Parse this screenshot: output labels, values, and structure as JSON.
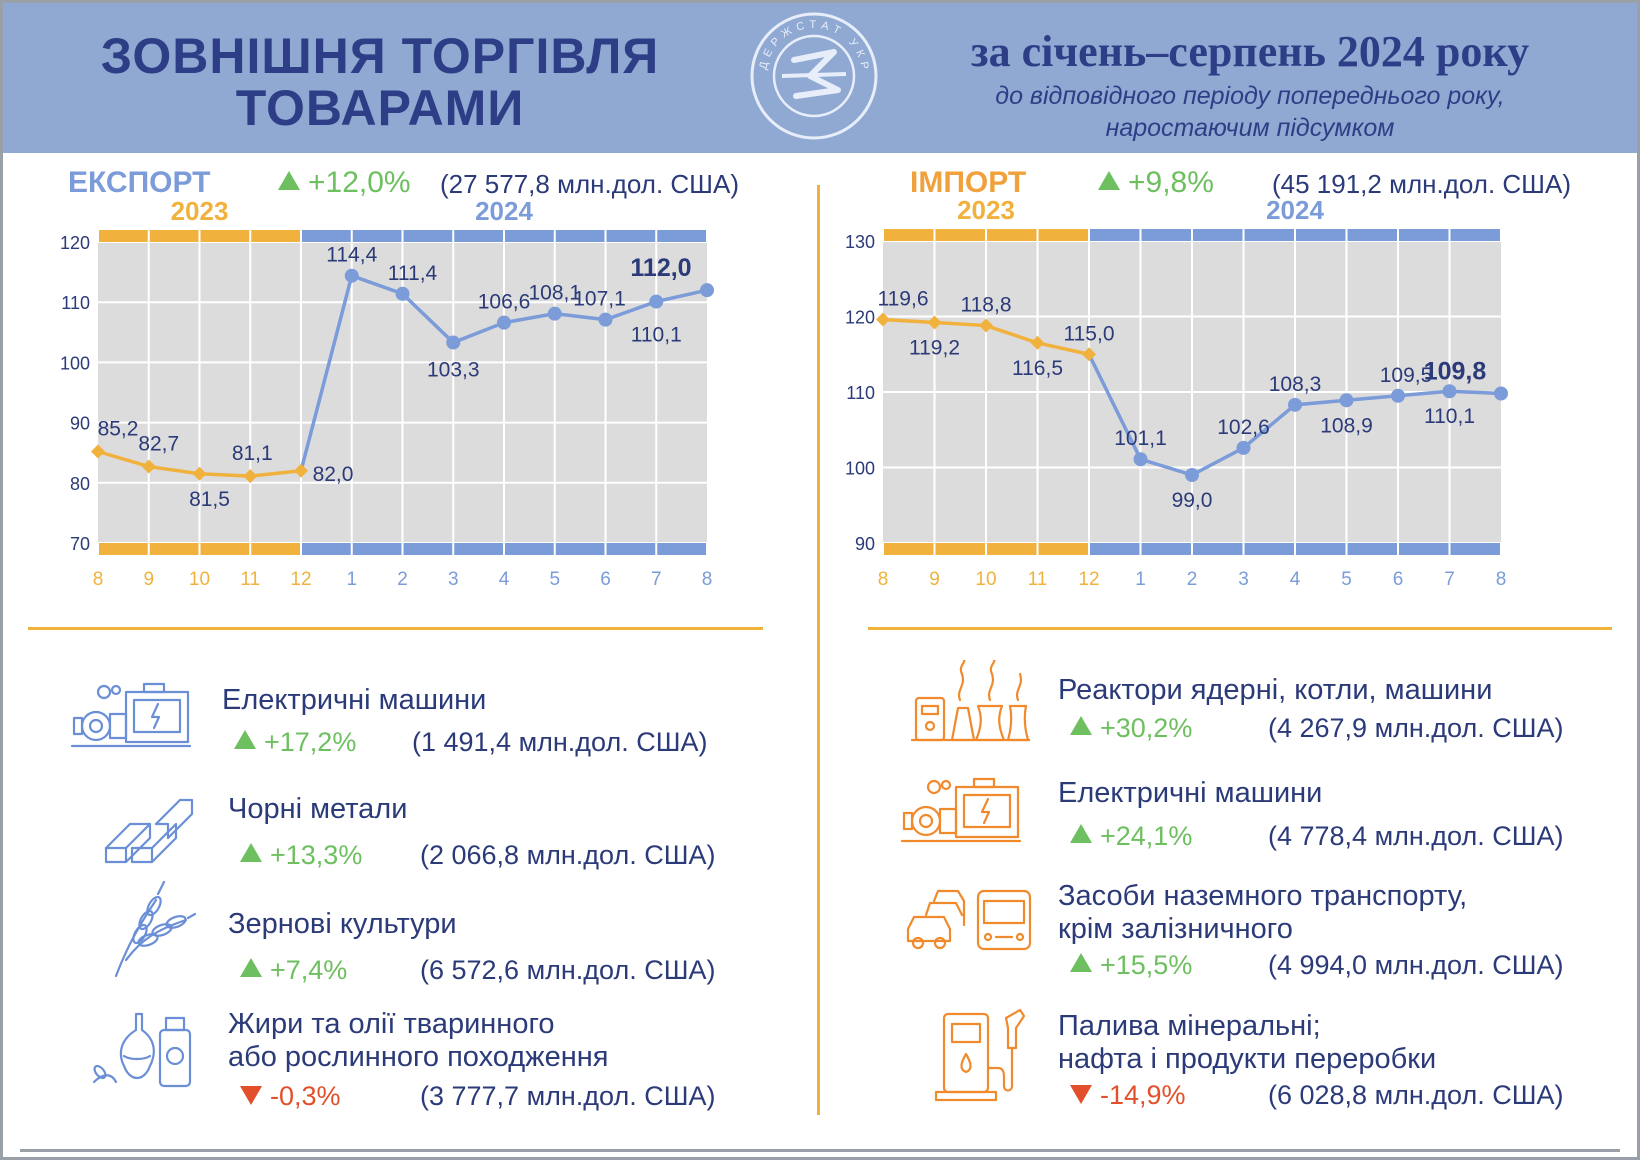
{
  "header": {
    "title_line1": "ЗОВНІШНЯ ТОРГІВЛЯ",
    "title_line2": "ТОВАРАМИ",
    "logo_text": "ДЕРЖСТАТ УКРАЇНИ",
    "period": "за січень–серпень 2024 року",
    "subtitle_line1": "до відповідного періоду попереднього року,",
    "subtitle_line2": "наростаючим підсумком"
  },
  "colors": {
    "banner": "#8fa9d3",
    "navy": "#2e3e86",
    "gold": "#f0b23c",
    "blue": "#7b9bd9",
    "green": "#6dbf5f",
    "red": "#e2502b",
    "grid": "#dcdcdc",
    "icon_blue": "#6a8fd6",
    "icon_orange": "#f08a2c"
  },
  "export": {
    "name": "ЕКСПОРТ",
    "change": "+12,0%",
    "value": "(27 577,8 млн.дол. США)"
  },
  "import": {
    "name": "ІМПОРТ",
    "change": "+9,8%",
    "value": "(45 191,2 млн.дол. США)"
  },
  "chart_data": [
    {
      "type": "line",
      "title": "ЕКСПОРТ",
      "year_labels": [
        "2023",
        "2024"
      ],
      "categories": [
        "8",
        "9",
        "10",
        "11",
        "12",
        "1",
        "2",
        "3",
        "4",
        "5",
        "6",
        "7",
        "8"
      ],
      "values": [
        85.2,
        82.7,
        81.5,
        81.1,
        82.0,
        114.4,
        111.4,
        103.3,
        106.6,
        108.1,
        107.1,
        110.1,
        112.0
      ],
      "labels": [
        "85,2",
        "82,7",
        "81,5",
        "81,1",
        "82,0",
        "114,4",
        "111,4",
        "103,3",
        "106,6",
        "108,1",
        "107,1",
        "110,1",
        "112,0"
      ],
      "y_ticks": [
        70,
        80,
        90,
        100,
        110,
        120
      ],
      "ylim": [
        70,
        120
      ],
      "split_index": 4,
      "grid": true
    },
    {
      "type": "line",
      "title": "ІМПОРТ",
      "year_labels": [
        "2023",
        "2024"
      ],
      "categories": [
        "8",
        "9",
        "10",
        "11",
        "12",
        "1",
        "2",
        "3",
        "4",
        "5",
        "6",
        "7",
        "8"
      ],
      "values": [
        119.6,
        119.2,
        118.8,
        116.5,
        115.0,
        101.1,
        99.0,
        102.6,
        108.3,
        108.9,
        109.5,
        110.1,
        109.8
      ],
      "labels": [
        "119,6",
        "119,2",
        "118,8",
        "116,5",
        "115,0",
        "101,1",
        "99,0",
        "102,6",
        "108,3",
        "108,9",
        "109,5",
        "110,1",
        "109,8"
      ],
      "y_ticks": [
        90,
        100,
        110,
        120,
        130
      ],
      "ylim": [
        90,
        130
      ],
      "split_index": 4,
      "grid": true
    }
  ],
  "export_items": [
    {
      "name_line1": "Електричні машини",
      "name_line2": "",
      "change": "+17,2%",
      "direction": "up",
      "value": "(1 491,4 млн.дол. США)",
      "icon": "electric-machine-icon"
    },
    {
      "name_line1": "Чорні метали",
      "name_line2": "",
      "change": "+13,3%",
      "direction": "up",
      "value": "(2 066,8 млн.дол. США)",
      "icon": "metal-beams-icon"
    },
    {
      "name_line1": "Зернові культури",
      "name_line2": "",
      "change": "+7,4%",
      "direction": "up",
      "value": "(6 572,6 млн.дол. США)",
      "icon": "wheat-icon"
    },
    {
      "name_line1": "Жири та олії тваринного",
      "name_line2": "або рослинного походження",
      "change": "-0,3%",
      "direction": "down",
      "value": "(3 777,7 млн.дол. США)",
      "icon": "oil-bottles-icon"
    }
  ],
  "import_items": [
    {
      "name_line1": "Реактори ядерні, котли, машини",
      "name_line2": "",
      "change": "+30,2%",
      "direction": "up",
      "value": "(4 267,9 млн.дол. США)",
      "icon": "reactor-plant-icon"
    },
    {
      "name_line1": "Електричні машини",
      "name_line2": "",
      "change": "+24,1%",
      "direction": "up",
      "value": "(4 778,4 млн.дол. США)",
      "icon": "electric-machine-icon"
    },
    {
      "name_line1": "Засоби наземного транспорту,",
      "name_line2": "крім залізничного",
      "change": "+15,5%",
      "direction": "up",
      "value": "(4 994,0 млн.дол. США)",
      "icon": "cars-bus-icon"
    },
    {
      "name_line1": "Палива мінеральні;",
      "name_line2": "нафта і продукти переробки",
      "change": "-14,9%",
      "direction": "down",
      "value": "(6 028,8 млн.дол. США)",
      "icon": "fuel-pump-icon"
    }
  ]
}
